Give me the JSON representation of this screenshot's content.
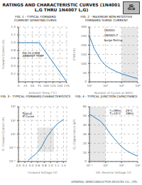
{
  "title": "RATINGS AND CHARACTERISTIC CURVES (1N4001 L,G THRU 1N4007 L,G)",
  "annotations": [
    "JD",
    "GCD",
    "GENERAL SEMICONDUCTOR DEVICES CO., LTD."
  ],
  "chart_data": [
    {
      "type": "line",
      "title": "FIG. 1 - TYPICAL FORWARD\nCURRENT DERATING CURVE",
      "xlabel": "Ambient Temp (°C)",
      "ylabel": "Forward Current (A)",
      "x": [
        0,
        75,
        175
      ],
      "values": [
        1.0,
        1.0,
        0.0
      ],
      "xlim": [
        0,
        175
      ],
      "ylim": [
        0,
        1.4
      ],
      "xticks": [
        0,
        25,
        50,
        75,
        100,
        125,
        150,
        175
      ],
      "yticks": [
        0.2,
        0.4,
        0.6,
        0.8,
        {
          "value": 1.0,
          "label": "1.0"
        },
        1.2,
        1.4
      ],
      "grid": true,
      "annotations": [
        "DO-41 CASE\nAMBIENT TEMP"
      ]
    },
    {
      "type": "line",
      "title": "FIG. 2 - MAXIMUM NON-RESISTIVE\nFORWARD SURGE CURRENT",
      "xlabel": "Number of Cycles at 60Hz",
      "ylabel": "IFSM (A)",
      "x": [
        1,
        2,
        5,
        10,
        20,
        50,
        100,
        500,
        1000
      ],
      "values": [
        250,
        180,
        120,
        90,
        72,
        55,
        44,
        25,
        18
      ],
      "xlim": [
        1,
        1000
      ],
      "ylim": [
        0,
        300
      ],
      "xticks": [
        {
          "value": 1,
          "label": "10⁰"
        },
        {
          "value": 10,
          "label": "10¹"
        },
        {
          "value": 100,
          "label": "10²"
        },
        {
          "value": 1000,
          "label": "10³"
        }
      ],
      "yticks": [
        0,
        50,
        100,
        150,
        200,
        250,
        300
      ],
      "log": "x",
      "grid": true,
      "shaded_x": [
        100,
        1000
      ],
      "annotations": [
        "1N4001",
        "1N4002-7",
        "Surge Rating"
      ]
    },
    {
      "type": "line",
      "title": "FIG. 3 - TYPICAL FORWARD CHARACTERISTICS",
      "xlabel": "Forward Voltage (V)",
      "ylabel": "IF, Forward Current (A)",
      "x": [
        0.3,
        0.4,
        0.5,
        0.6,
        0.65,
        0.7,
        0.75,
        0.8,
        0.85,
        0.9,
        1.0,
        1.1,
        1.2,
        1.4
      ],
      "values": [
        0.012,
        0.02,
        0.03,
        0.05,
        0.07,
        0.1,
        0.16,
        0.28,
        0.45,
        0.72,
        1.5,
        3.0,
        5.5,
        12
      ],
      "xlim": [
        0,
        1.5
      ],
      "ylim": [
        0.01,
        100
      ],
      "xticks": [
        {
          "value": 0,
          "label": "0.0"
        },
        0.2,
        0.4,
        0.6,
        0.8,
        {
          "value": 1.0,
          "label": "1.0"
        },
        1.2,
        1.4
      ],
      "yticks": [
        {
          "value": 0.01,
          "label": "10⁻²"
        },
        {
          "value": 0.1,
          "label": "10⁻¹"
        },
        {
          "value": 1,
          "label": "10⁰"
        },
        {
          "value": 10,
          "label": "10¹"
        },
        {
          "value": 100,
          "label": "10²"
        }
      ],
      "log": "y",
      "grid": true,
      "shaded_x": [
        0.6,
        1.1
      ],
      "shaded_y": [
        0.05,
        3.0
      ],
      "annotations": [
        "Typical\nIF Curve"
      ]
    },
    {
      "type": "line",
      "title": "FIG. 4 - TYPICAL JUNCTION CAPACITANCE",
      "xlabel": "VR, Reverse Voltage (V)",
      "ylabel": "CJ, Capacitance (pF)",
      "x": [
        0.1,
        0.5,
        1,
        2,
        5,
        10,
        20,
        50,
        100
      ],
      "values": [
        52,
        44,
        38,
        30,
        22,
        16,
        12,
        8,
        6
      ],
      "xlim": [
        0.1,
        100
      ],
      "ylim": [
        0,
        60
      ],
      "xticks": [
        {
          "value": 0.1,
          "label": "10⁻¹"
        },
        {
          "value": 1,
          "label": "10⁰"
        },
        {
          "value": 10,
          "label": "10¹"
        },
        {
          "value": 100,
          "label": "10²"
        }
      ],
      "yticks": [
        0,
        10,
        20,
        30,
        40,
        50,
        60
      ],
      "log": "x",
      "grid": true,
      "shaded_x": [
        0.1,
        1
      ],
      "annotations": [
        "25°C\n1MHz",
        "f=1MHz\nT=25°C"
      ]
    }
  ]
}
